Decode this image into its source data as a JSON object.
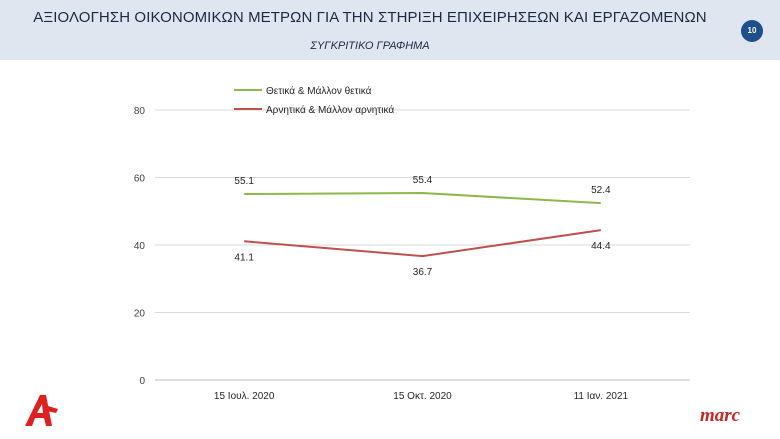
{
  "header": {
    "title": "ΑΞΙΟΛΟΓΗΣΗ ΟΙΚΟΝΟΜΙΚΩΝ ΜΕΤΡΩΝ ΓΙΑ ΤΗΝ ΣΤΗΡΙΞΗ ΕΠΙΧΕΙΡΗΣΕΩΝ ΚΑΙ ΕΡΓΑΖΟΜΕΝΩΝ",
    "subtitle": "ΣΥΓΚΡΙΤΙΚΟ ΓΡΑΦΗΜΑ",
    "page_number": "10"
  },
  "branding": {
    "left_logo": "alpha-logo-icon",
    "right_logo": "marc"
  },
  "chart_data": {
    "type": "line",
    "categories": [
      "15 Ιουλ. 2020",
      "15 Οκτ. 2020",
      "11 Ιαν. 2021"
    ],
    "series": [
      {
        "name": "Θετικά & Μάλλον θετικά",
        "values": [
          55.1,
          55.4,
          52.4
        ],
        "color": "#8db84a",
        "labels": [
          "55.1",
          "55.4",
          "52.4"
        ]
      },
      {
        "name": "Αρνητικά & Μάλλον αρνητικά",
        "values": [
          41.1,
          36.7,
          44.4
        ],
        "color": "#c0504d",
        "labels": [
          "41.1",
          "36.7",
          "44.4"
        ]
      }
    ],
    "ylim": [
      0,
      80
    ],
    "yticks": [
      "0",
      "20",
      "40",
      "60",
      "80"
    ],
    "grid": true,
    "legend": "top-left"
  }
}
